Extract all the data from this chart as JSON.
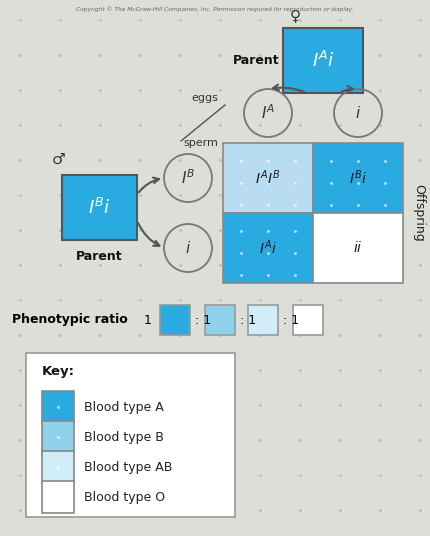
{
  "bg_color": "#dcdfd8",
  "title_text": "Copyright © The McGraw-Hill Companies, Inc. Permission required for reproduction or display.",
  "female_parent_color": "#29aae1",
  "male_parent_color": "#29aae1",
  "punnett_cell_colors": [
    "#b8ddf0",
    "#29aae1",
    "#29aae1",
    "#ffffff"
  ],
  "punnett_cell_labels": [
    "$I^AI^B$",
    "$I^Bi$",
    "$I^Ai$",
    "$ii$"
  ],
  "ratio_colors": [
    "#29aae1",
    "#8fd0eb",
    "#d0edf8",
    "#ffffff"
  ],
  "key_items": [
    {
      "color": "#29aae1",
      "label": "Blood type A"
    },
    {
      "color": "#8fd0eb",
      "label": "Blood type B"
    },
    {
      "color": "#d0edf8",
      "label": "Blood type AB"
    },
    {
      "color": "#ffffff",
      "label": "Blood type O"
    }
  ],
  "dot_color": "#aacde0",
  "grid_color": "#aaaaaa"
}
